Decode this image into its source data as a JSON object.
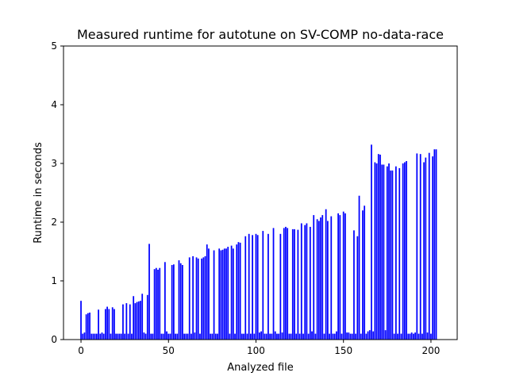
{
  "chart_data": {
    "type": "bar",
    "title": "Measured runtime for autotune on SV-COMP no-data-race",
    "xlabel": "Analyzed file",
    "ylabel": "Runtime in seconds",
    "xlim": [
      -10,
      215
    ],
    "ylim": [
      0,
      5
    ],
    "xticks": [
      0,
      50,
      100,
      150,
      200
    ],
    "yticks": [
      0,
      1,
      2,
      3,
      4,
      5
    ],
    "xtick_labels": [
      "0",
      "50",
      "100",
      "150",
      "200"
    ],
    "ytick_labels": [
      "0",
      "1",
      "2",
      "3",
      "4",
      "5"
    ],
    "bar_color": "#0000ff",
    "bar_width": 0.8,
    "grid": false,
    "values": [
      0.66,
      0.1,
      0.12,
      0.43,
      0.45,
      0.46,
      0.1,
      0.1,
      0.1,
      0.1,
      0.51,
      0.1,
      0.12,
      0.1,
      0.52,
      0.56,
      0.52,
      0.1,
      0.55,
      0.52,
      0.1,
      0.1,
      0.1,
      0.1,
      0.6,
      0.1,
      0.62,
      0.1,
      0.6,
      0.1,
      0.74,
      0.62,
      0.64,
      0.65,
      0.66,
      0.78,
      0.12,
      0.1,
      0.76,
      1.63,
      0.1,
      0.1,
      1.2,
      1.22,
      1.19,
      1.22,
      0.1,
      0.1,
      1.32,
      0.14,
      0.1,
      0.1,
      1.27,
      1.28,
      0.1,
      0.1,
      1.35,
      1.3,
      1.27,
      0.1,
      0.1,
      0.1,
      1.4,
      0.1,
      1.42,
      0.12,
      1.4,
      1.38,
      0.1,
      1.38,
      1.4,
      1.42,
      1.62,
      1.55,
      0.1,
      0.1,
      1.52,
      0.1,
      0.1,
      1.55,
      1.52,
      1.53,
      1.55,
      1.55,
      1.58,
      0.1,
      1.6,
      1.55,
      0.1,
      1.62,
      1.66,
      1.65,
      0.1,
      0.1,
      1.76,
      0.1,
      1.8,
      0.1,
      1.78,
      0.1,
      1.8,
      1.78,
      0.12,
      0.14,
      1.85,
      0.1,
      0.1,
      1.8,
      0.1,
      0.1,
      1.9,
      0.14,
      0.1,
      0.1,
      1.8,
      0.12,
      1.9,
      1.92,
      1.9,
      0.1,
      0.1,
      1.88,
      1.88,
      0.1,
      1.87,
      0.1,
      1.98,
      0.1,
      1.95,
      1.98,
      0.1,
      1.92,
      0.14,
      2.12,
      0.1,
      2.05,
      2.02,
      2.08,
      2.12,
      0.1,
      2.22,
      2.02,
      0.1,
      2.1,
      0.1,
      0.1,
      0.14,
      2.15,
      2.12,
      0.1,
      2.18,
      2.15,
      0.12,
      0.12,
      0.1,
      0.1,
      1.86,
      0.1,
      1.76,
      2.45,
      0.1,
      2.2,
      2.28,
      0.1,
      0.14,
      0.16,
      3.32,
      0.14,
      3.02,
      3.0,
      3.16,
      3.15,
      2.98,
      2.98,
      0.16,
      2.95,
      3.0,
      2.88,
      2.88,
      0.1,
      2.95,
      0.1,
      2.92,
      0.1,
      3.0,
      3.02,
      3.04,
      0.1,
      0.1,
      0.12,
      0.1,
      0.12,
      3.17,
      0.1,
      3.16,
      0.1,
      3.02,
      3.1,
      0.12,
      3.18,
      0.1,
      3.12,
      3.24,
      3.24
    ]
  }
}
